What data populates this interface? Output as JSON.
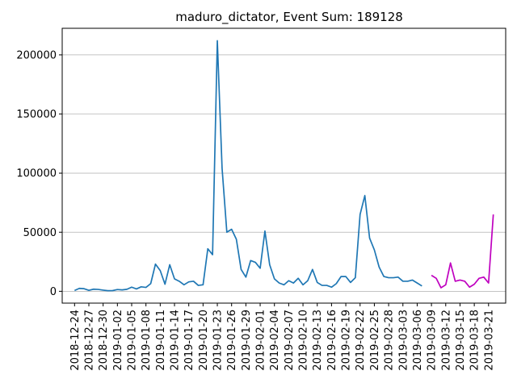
{
  "chart_data": {
    "type": "line",
    "title": "maduro_dictator, Event Sum: 189128",
    "xlabel": "",
    "ylabel": "",
    "ylim": [
      -10000,
      222500
    ],
    "grid": {
      "y": true,
      "x": false
    },
    "x_ticks": [
      "2018-12-24",
      "2018-12-27",
      "2018-12-30",
      "2019-01-02",
      "2019-01-05",
      "2019-01-08",
      "2019-01-11",
      "2019-01-14",
      "2019-01-17",
      "2019-01-20",
      "2019-01-23",
      "2019-01-26",
      "2019-01-29",
      "2019-02-01",
      "2019-02-04",
      "2019-02-07",
      "2019-02-10",
      "2019-02-13",
      "2019-02-16",
      "2019-02-19",
      "2019-02-22",
      "2019-02-25",
      "2019-02-28",
      "2019-03-03",
      "2019-03-06",
      "2019-03-09",
      "2019-03-12",
      "2019-03-15",
      "2019-03-18",
      "2019-03-21"
    ],
    "y_ticks": [
      {
        "value": 0,
        "label": "0"
      },
      {
        "value": 50000,
        "label": "50000"
      },
      {
        "value": 100000,
        "label": "100000"
      },
      {
        "value": 150000,
        "label": "150000"
      },
      {
        "value": 200000,
        "label": "200000"
      }
    ],
    "series": [
      {
        "color": "#1f77b4",
        "start": "2018-12-24",
        "values": [
          700,
          2500,
          2200,
          800,
          1800,
          1600,
          1000,
          500,
          600,
          1500,
          1200,
          1700,
          3500,
          2000,
          3800,
          3300,
          6500,
          23000,
          17500,
          6000,
          22500,
          10500,
          8500,
          5500,
          8000,
          8500,
          5000,
          5500,
          36000,
          31000,
          212000,
          104000,
          50000,
          52500,
          44000,
          18500,
          12000,
          26000,
          24500,
          19500,
          51000,
          22500,
          10500,
          7000,
          5500,
          9000,
          7000,
          11000,
          5500,
          9000,
          18500,
          7500,
          5000,
          5000,
          3500,
          6500,
          12500,
          12500,
          7500,
          11500,
          65000,
          81000,
          45000,
          35000,
          20500,
          12500,
          11500,
          11500,
          12000,
          8500,
          8500,
          9500,
          7000,
          4500
        ]
      },
      {
        "color": "#bf00bf",
        "start": "2019-03-09",
        "values": [
          13500,
          11000,
          3000,
          5500,
          24000,
          8500,
          9500,
          8500,
          3500,
          6000,
          11000,
          12000,
          7000,
          65000
        ]
      }
    ]
  }
}
